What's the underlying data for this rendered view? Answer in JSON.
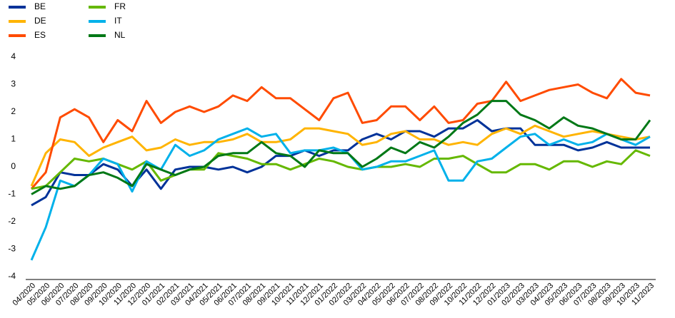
{
  "chart_data": {
    "type": "line",
    "x": [
      "04/2020",
      "05/2020",
      "06/2020",
      "07/2020",
      "08/2020",
      "09/2020",
      "10/2020",
      "11/2020",
      "12/2020",
      "01/2021",
      "02/2021",
      "03/2021",
      "04/2021",
      "05/2021",
      "06/2021",
      "07/2021",
      "08/2021",
      "09/2021",
      "10/2021",
      "11/2021",
      "12/2021",
      "01/2022",
      "02/2022",
      "03/2022",
      "04/2022",
      "05/2022",
      "06/2022",
      "07/2022",
      "08/2022",
      "09/2022",
      "10/2022",
      "11/2022",
      "12/2022",
      "01/2023",
      "02/2023",
      "03/2023",
      "04/2023",
      "05/2023",
      "06/2023",
      "07/2023",
      "08/2023",
      "09/2023",
      "10/2023",
      "11/2023"
    ],
    "series": [
      {
        "name": "BE",
        "color": "#003299",
        "values": [
          -1.4,
          -1.1,
          -0.2,
          -0.3,
          -0.3,
          0.1,
          -0.1,
          -0.7,
          -0.1,
          -0.8,
          -0.1,
          0.0,
          0.0,
          -0.1,
          0.0,
          -0.2,
          0.0,
          0.4,
          0.4,
          0.6,
          0.4,
          0.6,
          0.6,
          1.0,
          1.2,
          1.0,
          1.3,
          1.3,
          1.1,
          1.4,
          1.4,
          1.7,
          1.3,
          1.4,
          1.4,
          0.8,
          0.8,
          0.8,
          0.6,
          0.7,
          0.9,
          0.7,
          0.7,
          0.7
        ]
      },
      {
        "name": "DE",
        "color": "#ffb400",
        "values": [
          -0.7,
          0.5,
          1.0,
          0.9,
          0.4,
          0.7,
          0.9,
          1.1,
          0.6,
          0.7,
          1.0,
          0.8,
          0.9,
          0.9,
          1.0,
          1.2,
          0.9,
          0.9,
          1.0,
          1.4,
          1.4,
          1.3,
          1.2,
          0.8,
          0.9,
          1.2,
          1.3,
          1.0,
          1.0,
          0.8,
          0.9,
          0.8,
          1.2,
          1.4,
          1.2,
          1.5,
          1.3,
          1.1,
          1.2,
          1.3,
          1.2,
          1.1,
          1.0,
          1.1
        ]
      },
      {
        "name": "ES",
        "color": "#ff4b00",
        "values": [
          -0.8,
          -0.2,
          1.8,
          2.1,
          1.8,
          0.9,
          1.7,
          1.3,
          2.4,
          1.6,
          2.0,
          2.2,
          2.0,
          2.2,
          2.6,
          2.4,
          2.9,
          2.5,
          2.5,
          2.1,
          1.7,
          2.5,
          2.7,
          1.6,
          1.7,
          2.2,
          2.2,
          1.7,
          2.2,
          1.6,
          1.7,
          2.3,
          2.4,
          3.1,
          2.4,
          2.6,
          2.8,
          2.9,
          3.0,
          2.7,
          2.5,
          3.2,
          2.7,
          2.6
        ]
      },
      {
        "name": "FR",
        "color": "#65b800",
        "values": [
          -0.8,
          -0.7,
          -0.2,
          0.3,
          0.2,
          0.3,
          0.1,
          -0.1,
          0.2,
          -0.5,
          -0.3,
          -0.1,
          -0.1,
          0.5,
          0.4,
          0.3,
          0.1,
          0.1,
          -0.1,
          0.1,
          0.3,
          0.2,
          0.0,
          -0.1,
          0.0,
          0.0,
          0.1,
          0.0,
          0.3,
          0.3,
          0.4,
          0.1,
          -0.2,
          -0.2,
          0.1,
          0.1,
          -0.1,
          0.2,
          0.2,
          0.0,
          0.2,
          0.1,
          0.6,
          0.4
        ]
      },
      {
        "name": "IT",
        "color": "#00b1ea",
        "values": [
          -3.4,
          -2.2,
          -0.5,
          -0.7,
          -0.3,
          0.3,
          0.1,
          -0.9,
          0.2,
          -0.1,
          0.8,
          0.4,
          0.6,
          1.0,
          1.2,
          1.4,
          1.1,
          1.2,
          0.5,
          0.6,
          0.6,
          0.7,
          0.5,
          -0.1,
          0.0,
          0.2,
          0.2,
          0.4,
          0.6,
          -0.5,
          -0.5,
          0.2,
          0.3,
          0.7,
          1.1,
          1.2,
          0.8,
          1.0,
          0.8,
          0.9,
          1.2,
          1.0,
          0.8,
          1.1
        ]
      },
      {
        "name": "NL",
        "color": "#007816",
        "values": [
          -1.0,
          -0.7,
          -0.8,
          -0.7,
          -0.3,
          -0.2,
          -0.4,
          -0.7,
          0.1,
          -0.1,
          -0.3,
          -0.1,
          0.0,
          0.4,
          0.5,
          0.5,
          0.9,
          0.5,
          0.4,
          0.0,
          0.6,
          0.5,
          0.5,
          0.0,
          0.3,
          0.7,
          0.5,
          0.9,
          0.7,
          1.1,
          1.6,
          1.9,
          2.4,
          2.4,
          1.9,
          1.7,
          1.4,
          1.8,
          1.5,
          1.4,
          1.2,
          1.0,
          1.0,
          1.7
        ]
      }
    ],
    "ylim": [
      -4,
      4
    ],
    "yticks": [
      -4,
      -3,
      -2,
      -1,
      0,
      1,
      2,
      3,
      4
    ],
    "grid": false,
    "legend": "top-left"
  }
}
